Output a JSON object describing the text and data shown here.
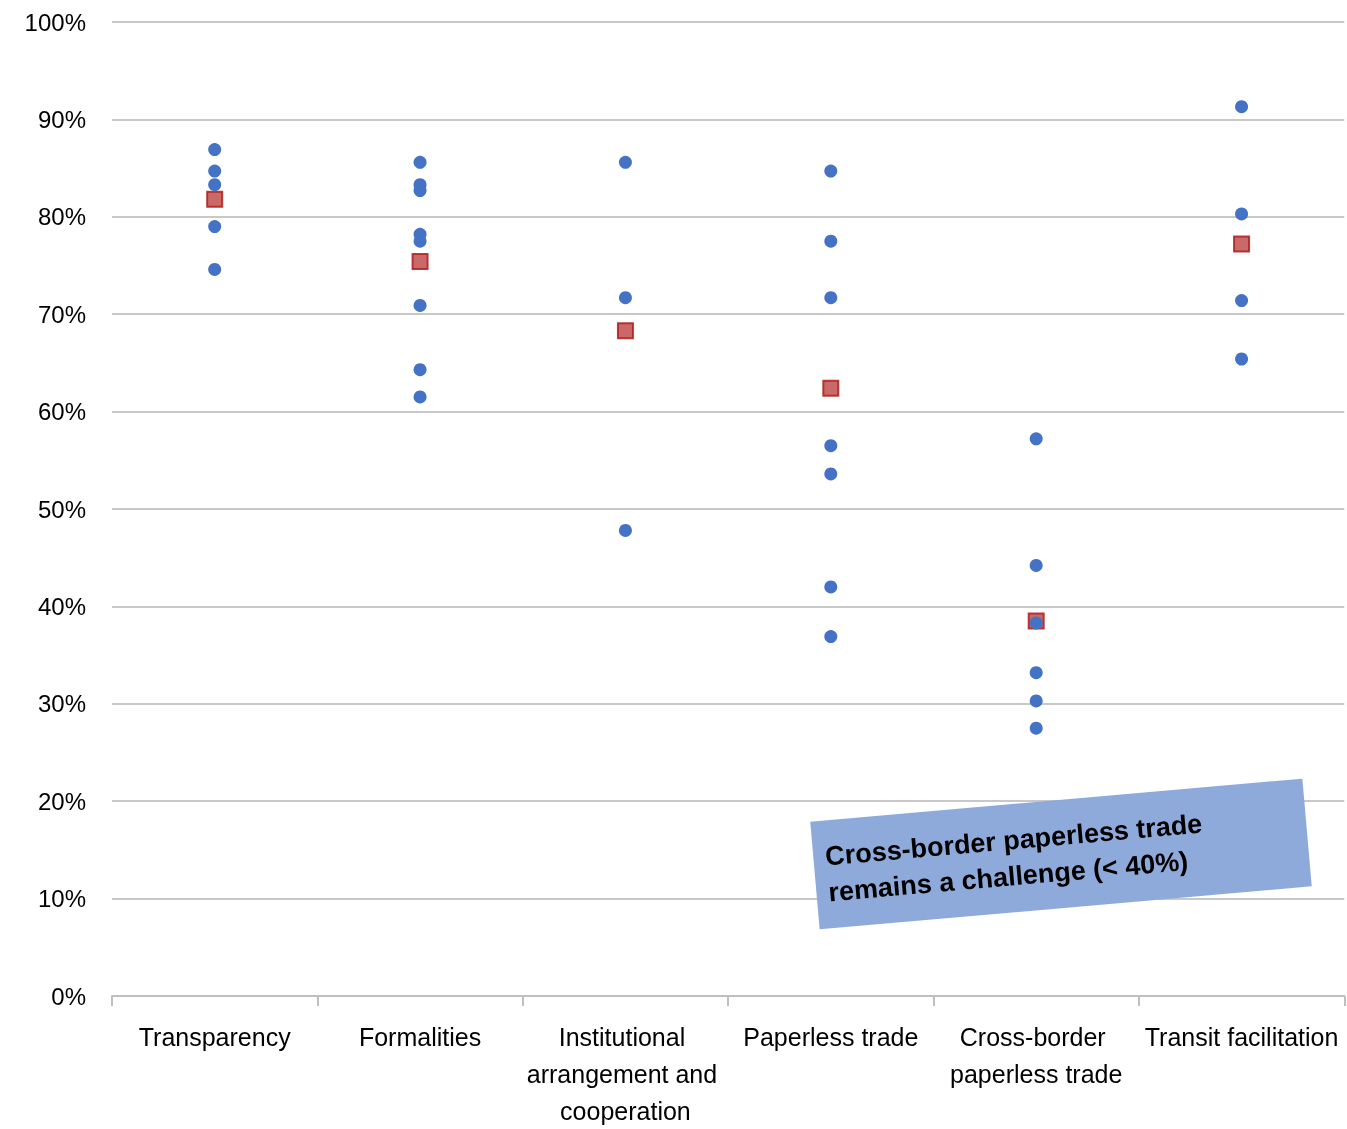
{
  "chart_data": {
    "type": "scatter",
    "categories": [
      "Transparency",
      "Formalities",
      "Institutional arrangement and cooperation",
      "Paperless trade",
      "Cross-border paperless trade",
      "Transit facilitation"
    ],
    "series": [
      {
        "color": "#4472c4",
        "marker": "circle",
        "x": [
          "Transparency",
          "Transparency",
          "Transparency",
          "Transparency",
          "Transparency",
          "Formalities",
          "Formalities",
          "Formalities",
          "Formalities",
          "Formalities",
          "Formalities",
          "Formalities",
          "Formalities",
          "Institutional arrangement and cooperation",
          "Institutional arrangement and cooperation",
          "Institutional arrangement and cooperation",
          "Paperless trade",
          "Paperless trade",
          "Paperless trade",
          "Paperless trade",
          "Paperless trade",
          "Paperless trade",
          "Paperless trade",
          "Cross-border paperless trade",
          "Cross-border paperless trade",
          "Cross-border paperless trade",
          "Cross-border paperless trade",
          "Cross-border paperless trade",
          "Cross-border paperless trade",
          "Transit facilitation",
          "Transit facilitation",
          "Transit facilitation",
          "Transit facilitation"
        ],
        "values": [
          86.9,
          84.7,
          83.3,
          79.0,
          74.6,
          85.6,
          83.3,
          82.7,
          78.2,
          77.5,
          70.9,
          64.3,
          61.5,
          85.6,
          71.7,
          47.8,
          84.7,
          77.5,
          71.7,
          56.5,
          53.6,
          42.0,
          36.9,
          57.2,
          44.2,
          38.3,
          33.2,
          30.3,
          27.5,
          91.3,
          80.3,
          71.4,
          65.4
        ]
      },
      {
        "color": "#c0504d",
        "marker": "square",
        "values": [
          81.8,
          75.4,
          68.3,
          62.4,
          38.5,
          77.2
        ]
      }
    ],
    "ylim": [
      0,
      100
    ],
    "yticks": [
      {
        "value": 0,
        "label": "0%"
      },
      {
        "value": 10,
        "label": "10%"
      },
      {
        "value": 20,
        "label": "20%"
      },
      {
        "value": 30,
        "label": "30%"
      },
      {
        "value": 40,
        "label": "40%"
      },
      {
        "value": 50,
        "label": "50%"
      },
      {
        "value": 60,
        "label": "60%"
      },
      {
        "value": 70,
        "label": "70%"
      },
      {
        "value": 80,
        "label": "80%"
      },
      {
        "value": 90,
        "label": "90%"
      },
      {
        "value": 100,
        "label": "100%"
      }
    ],
    "grid": "y",
    "annotations": [
      "Cross-border paperless trade remains a challenge (< 40%)"
    ]
  }
}
